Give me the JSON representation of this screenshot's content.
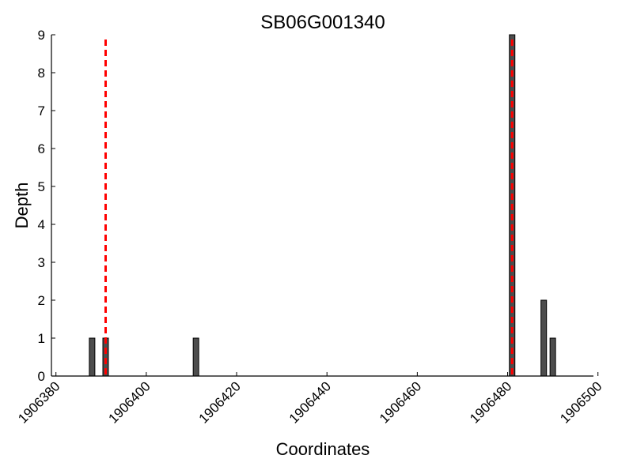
{
  "chart_data": {
    "type": "bar",
    "title": "SB06G001340",
    "xlabel": "Coordinates",
    "ylabel": "Depth",
    "xlim": [
      1906379,
      1906499
    ],
    "ylim": [
      0,
      9
    ],
    "x_ticks": [
      1906380,
      1906400,
      1906420,
      1906440,
      1906460,
      1906480,
      1906500
    ],
    "x_tick_labels": [
      "1906380",
      "1906400",
      "1906420",
      "1906440",
      "1906460",
      "1906480",
      "1906500"
    ],
    "y_ticks": [
      0,
      1,
      2,
      3,
      4,
      5,
      6,
      7,
      8,
      9
    ],
    "y_tick_labels": [
      "0",
      "1",
      "2",
      "3",
      "4",
      "5",
      "6",
      "7",
      "8",
      "9"
    ],
    "grid": false,
    "series": [
      {
        "x": [
          1906388,
          1906391,
          1906411,
          1906481,
          1906488,
          1906490
        ],
        "values": [
          1,
          1,
          1,
          9,
          2,
          1
        ]
      }
    ],
    "vertical_lines": [
      1906391,
      1906481
    ],
    "colors": {
      "bar_fill": "#4d4d4d",
      "bar_edge": "#000000",
      "marker_line": "#ff0000",
      "axis": "#000000"
    }
  }
}
